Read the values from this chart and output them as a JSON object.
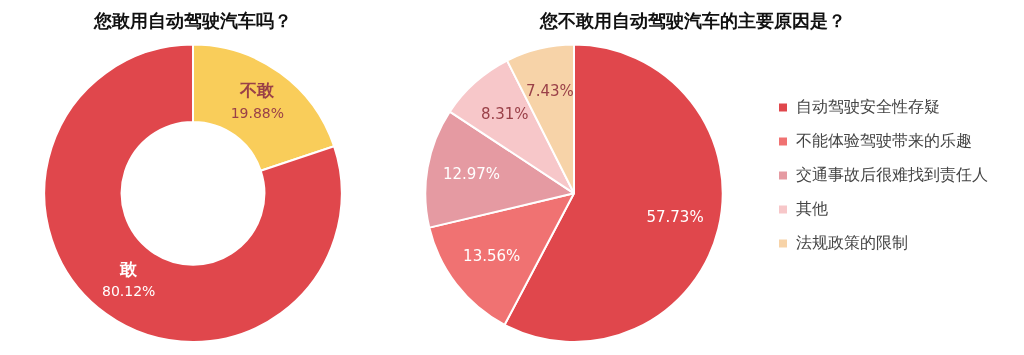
{
  "chart_data": [
    {
      "type": "donut",
      "title": "您敢用自动驾驶汽车吗？",
      "categories": [
        "不敢",
        "敢"
      ],
      "values": [
        19.88,
        80.12
      ],
      "colors": [
        "#f9cd5a",
        "#e0474c"
      ],
      "value_labels": [
        "19.88%",
        "80.12%"
      ],
      "legend": false
    },
    {
      "type": "pie",
      "title": "您不敢用自动驾驶汽车的主要原因是？",
      "categories": [
        "自动驾驶安全性存疑",
        "不能体验驾驶带来的乐趣",
        "交通事故后很难找到责任人",
        "其他",
        "法规政策的限制"
      ],
      "values": [
        57.73,
        13.56,
        12.97,
        8.31,
        7.43
      ],
      "colors": [
        "#e0474c",
        "#f07272",
        "#e59aa2",
        "#f7c7c9",
        "#f7d3a8"
      ],
      "value_labels": [
        "57.73%",
        "13.56%",
        "12.97%",
        "8.31%",
        "7.43%"
      ],
      "legend": "right"
    }
  ]
}
